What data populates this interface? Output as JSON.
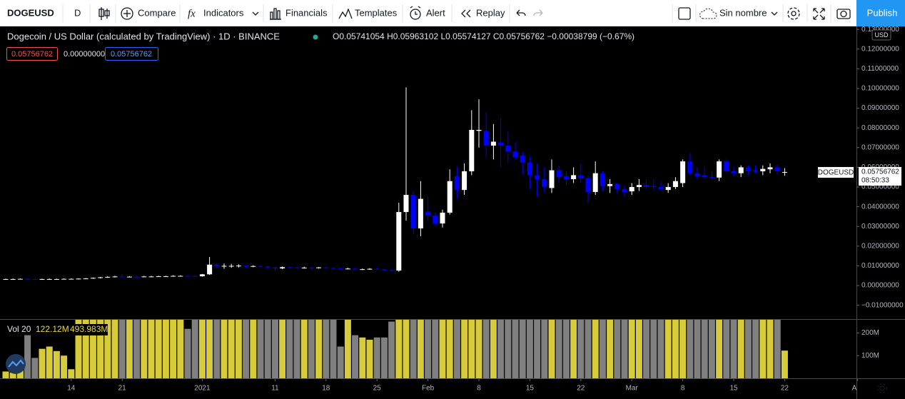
{
  "toolbar": {
    "symbol": "DOGEUSD",
    "interval": "D",
    "items": [
      "Compare",
      "Indicators",
      "Financials",
      "Templates",
      "Alert",
      "Replay"
    ],
    "layout_name": "Sin nombre",
    "publish": "Publish"
  },
  "header": {
    "title": "Dogecoin / US Dollar (calculated by TradingView) · 1D · BINANCE",
    "ohlc": "O0.05741054 H0.05963102 L0.05574127 C0.05756762 −0.00038799 (−0.67%)",
    "inputs": [
      "0.05756762",
      "0.00000000",
      "0.05756762"
    ]
  },
  "volume_legend": {
    "name": "Vol 20",
    "value": "122.12M",
    "ma": "493.983M"
  },
  "price_label": {
    "symbol": "DOGEUSD",
    "price": "0.05756762",
    "countdown": "08:50:33"
  },
  "currency": "USD",
  "chart_data": {
    "type": "candlestick",
    "up_color": "#ffffff",
    "down_color": "#0000ff",
    "volume_up_color": "#d8cb3a",
    "volume_down_color": "#808080",
    "open": [
      0.0032,
      0.0033,
      0.0033,
      0.0034,
      0.0033,
      0.0032,
      0.0033,
      0.0033,
      0.0033,
      0.0034,
      0.0034,
      0.0035,
      0.0036,
      0.0039,
      0.0042,
      0.0044,
      0.0046,
      0.0044,
      0.0045,
      0.0044,
      0.0046,
      0.0046,
      0.0047,
      0.0047,
      0.0049,
      0.0049,
      0.0048,
      0.0047,
      0.0057,
      0.0106,
      0.0099,
      0.01,
      0.01,
      0.0101,
      0.0098,
      0.0099,
      0.0097,
      0.0092,
      0.0087,
      0.0093,
      0.0092,
      0.009,
      0.0091,
      0.0089,
      0.0092,
      0.0089,
      0.0088,
      0.0085,
      0.0086,
      0.0082,
      0.0083,
      0.0085,
      0.0082,
      0.0078,
      0.0076,
      0.0373,
      0.046,
      0.029,
      0.0375,
      0.0355,
      0.0315,
      0.037,
      0.0555,
      0.0485,
      0.058,
      0.0785,
      0.0785,
      0.071,
      0.0725,
      0.071,
      0.068,
      0.066,
      0.0625,
      0.056,
      0.054,
      0.0495,
      0.0585,
      0.0555,
      0.054,
      0.056,
      0.0545,
      0.0475,
      0.057,
      0.0505,
      0.0515,
      0.049,
      0.0478,
      0.05,
      0.051,
      0.0505,
      0.05,
      0.0485,
      0.05,
      0.052,
      0.063,
      0.057,
      0.056,
      0.055,
      0.0548,
      0.063,
      0.058,
      0.057,
      0.06,
      0.0585,
      0.058,
      0.059,
      0.06,
      0.0574
    ],
    "high": [
      0.0035,
      0.0036,
      0.0036,
      0.0036,
      0.0035,
      0.0035,
      0.0036,
      0.0035,
      0.0036,
      0.0036,
      0.0037,
      0.0038,
      0.0041,
      0.0044,
      0.0047,
      0.0049,
      0.0058,
      0.0048,
      0.0047,
      0.0049,
      0.0049,
      0.005,
      0.005,
      0.0052,
      0.0052,
      0.0051,
      0.005,
      0.0059,
      0.0145,
      0.0113,
      0.0112,
      0.011,
      0.0108,
      0.0104,
      0.0103,
      0.0103,
      0.01,
      0.0095,
      0.0097,
      0.0097,
      0.0095,
      0.0096,
      0.0094,
      0.0094,
      0.0095,
      0.0093,
      0.0091,
      0.009,
      0.0089,
      0.0086,
      0.0088,
      0.0088,
      0.0085,
      0.0081,
      0.042,
      0.1006,
      0.048,
      0.053,
      0.045,
      0.037,
      0.0385,
      0.059,
      0.0605,
      0.062,
      0.089,
      0.0945,
      0.088,
      0.082,
      0.085,
      0.078,
      0.073,
      0.068,
      0.0655,
      0.062,
      0.06,
      0.064,
      0.061,
      0.058,
      0.06,
      0.062,
      0.056,
      0.063,
      0.058,
      0.054,
      0.052,
      0.051,
      0.052,
      0.054,
      0.054,
      0.054,
      0.053,
      0.052,
      0.055,
      0.064,
      0.067,
      0.06,
      0.06,
      0.058,
      0.064,
      0.064,
      0.06,
      0.061,
      0.061,
      0.061,
      0.061,
      0.062,
      0.0615,
      0.0596
    ],
    "low": [
      0.003,
      0.0031,
      0.0031,
      0.0031,
      0.003,
      0.003,
      0.0031,
      0.0031,
      0.0031,
      0.0032,
      0.0032,
      0.0033,
      0.0034,
      0.0036,
      0.0039,
      0.0041,
      0.004,
      0.0042,
      0.0041,
      0.0042,
      0.0043,
      0.0044,
      0.0044,
      0.0045,
      0.0046,
      0.0045,
      0.0044,
      0.0045,
      0.0054,
      0.0088,
      0.0085,
      0.009,
      0.0092,
      0.0092,
      0.0093,
      0.009,
      0.0085,
      0.0078,
      0.0083,
      0.0087,
      0.0085,
      0.0086,
      0.0085,
      0.0086,
      0.0086,
      0.0084,
      0.008,
      0.0082,
      0.0079,
      0.0079,
      0.008,
      0.008,
      0.0076,
      0.0072,
      0.007,
      0.033,
      0.026,
      0.025,
      0.033,
      0.03,
      0.0295,
      0.036,
      0.044,
      0.046,
      0.056,
      0.07,
      0.065,
      0.064,
      0.06,
      0.062,
      0.064,
      0.056,
      0.049,
      0.045,
      0.047,
      0.047,
      0.052,
      0.051,
      0.052,
      0.052,
      0.042,
      0.046,
      0.048,
      0.047,
      0.047,
      0.045,
      0.046,
      0.048,
      0.049,
      0.048,
      0.048,
      0.047,
      0.049,
      0.05,
      0.056,
      0.054,
      0.054,
      0.0535,
      0.053,
      0.057,
      0.0555,
      0.055,
      0.056,
      0.057,
      0.056,
      0.057,
      0.0565,
      0.0557
    ],
    "close": [
      0.0033,
      0.0033,
      0.0034,
      0.0033,
      0.0032,
      0.0033,
      0.0033,
      0.0033,
      0.0034,
      0.0034,
      0.0035,
      0.0036,
      0.0039,
      0.0042,
      0.0044,
      0.0046,
      0.0044,
      0.0045,
      0.0044,
      0.0046,
      0.0046,
      0.0047,
      0.0047,
      0.0049,
      0.0049,
      0.0048,
      0.0047,
      0.0057,
      0.0106,
      0.0099,
      0.01,
      0.01,
      0.0101,
      0.0098,
      0.0099,
      0.0097,
      0.0092,
      0.0087,
      0.0093,
      0.0092,
      0.009,
      0.0091,
      0.0089,
      0.0092,
      0.0089,
      0.0088,
      0.0085,
      0.0086,
      0.0082,
      0.0083,
      0.0085,
      0.0082,
      0.0078,
      0.0075,
      0.0373,
      0.046,
      0.029,
      0.044,
      0.0355,
      0.0315,
      0.037,
      0.053,
      0.0485,
      0.058,
      0.079,
      0.079,
      0.071,
      0.073,
      0.071,
      0.068,
      0.065,
      0.0625,
      0.056,
      0.054,
      0.05,
      0.0585,
      0.055,
      0.054,
      0.056,
      0.0545,
      0.0475,
      0.057,
      0.0505,
      0.0515,
      0.049,
      0.0475,
      0.05,
      0.051,
      0.05,
      0.05,
      0.049,
      0.05,
      0.053,
      0.063,
      0.057,
      0.0555,
      0.055,
      0.0548,
      0.063,
      0.058,
      0.057,
      0.06,
      0.058,
      0.0578,
      0.0592,
      0.06,
      0.058,
      0.0576
    ],
    "volume": [
      30,
      25,
      80,
      190,
      90,
      130,
      140,
      120,
      100,
      40,
      400,
      400,
      400,
      400,
      400,
      400,
      400,
      400,
      400,
      400,
      400,
      400,
      400,
      400,
      400,
      218,
      400,
      400,
      400,
      400,
      400,
      400,
      400,
      400,
      400,
      400,
      400,
      400,
      400,
      400,
      400,
      400,
      400,
      400,
      400,
      400,
      140,
      400,
      190,
      180,
      170,
      180,
      180,
      250,
      400,
      400,
      400,
      400,
      400,
      400,
      400,
      400,
      400,
      400,
      400,
      400,
      400,
      400,
      400,
      400,
      400,
      400,
      400,
      400,
      400,
      400,
      400,
      400,
      400,
      400,
      400,
      400,
      400,
      400,
      400,
      400,
      400,
      400,
      400,
      400,
      400,
      400,
      400,
      400,
      400,
      400,
      400,
      400,
      400,
      400,
      400,
      400,
      400,
      400,
      400,
      400,
      400,
      122.12
    ],
    "ylim": [
      -0.017,
      0.1315
    ],
    "yticks": [
      {
        "value": -0.01,
        "label": "−0.01000000"
      },
      {
        "value": 0,
        "label": "0.00000000"
      },
      {
        "value": 0.01,
        "label": "0.01000000"
      },
      {
        "value": 0.02,
        "label": "0.02000000"
      },
      {
        "value": 0.03,
        "label": "0.03000000"
      },
      {
        "value": 0.04,
        "label": "0.04000000"
      },
      {
        "value": 0.05,
        "label": "0.05000000"
      },
      {
        "value": 0.06,
        "label": "0.06000000"
      },
      {
        "value": 0.07,
        "label": "0.07000000"
      },
      {
        "value": 0.08,
        "label": "0.08000000"
      },
      {
        "value": 0.09,
        "label": "0.09000000"
      },
      {
        "value": 0.1,
        "label": "0.10000000"
      },
      {
        "value": 0.11,
        "label": "0.11000000"
      },
      {
        "value": 0.12,
        "label": "0.12000000"
      },
      {
        "value": 0.13,
        "label": "0.13000000"
      }
    ],
    "volume_ylim": [
      0,
      258
    ],
    "volume_yticks": [
      {
        "value": 100,
        "label": "100M"
      },
      {
        "value": 200,
        "label": "200M"
      }
    ],
    "xticks": [
      {
        "value": 9,
        "label": "14"
      },
      {
        "value": 16,
        "label": "21"
      },
      {
        "value": 27,
        "label": "2021"
      },
      {
        "value": 37,
        "label": "11"
      },
      {
        "value": 44,
        "label": "18"
      },
      {
        "value": 51,
        "label": "25"
      },
      {
        "value": 58,
        "label": "Feb"
      },
      {
        "value": 65,
        "label": "8"
      },
      {
        "value": 72,
        "label": "15"
      },
      {
        "value": 79,
        "label": "22"
      },
      {
        "value": 86,
        "label": "Mar"
      },
      {
        "value": 93,
        "label": "8"
      },
      {
        "value": 100,
        "label": "15"
      },
      {
        "value": 107,
        "label": "22"
      },
      {
        "value": 117,
        "label": "A"
      }
    ]
  }
}
